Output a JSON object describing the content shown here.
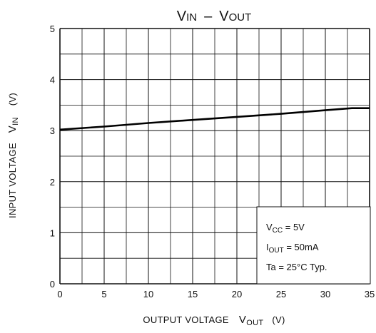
{
  "chart_data": {
    "type": "line",
    "title": {
      "v1": "V",
      "s1": "IN",
      "sep": "–",
      "v2": "V",
      "s2": "OUT"
    },
    "xlabel": {
      "main": "OUTPUT VOLTAGE",
      "sym": "V",
      "sub": "OUT",
      "unit": "(V)"
    },
    "ylabel": {
      "main": "INPUT VOLTAGE",
      "sym": "V",
      "sub": "IN",
      "unit": "(V)"
    },
    "xlim": [
      0,
      35
    ],
    "ylim": [
      0,
      5
    ],
    "xticks": [
      "0",
      "5",
      "10",
      "15",
      "20",
      "25",
      "30",
      "35"
    ],
    "yticks": [
      "0",
      "1",
      "2",
      "3",
      "4",
      "5"
    ],
    "grid": true,
    "series": [
      {
        "x": [
          0,
          5,
          10,
          15,
          20,
          25,
          30,
          33,
          35
        ],
        "y": [
          3.02,
          3.08,
          3.15,
          3.21,
          3.27,
          3.33,
          3.4,
          3.44,
          3.44
        ]
      }
    ],
    "annotations": [
      {
        "sym": "V",
        "sub": "CC",
        "rest": " = 5V"
      },
      {
        "sym": "I",
        "sub": "OUT",
        "rest": " = 50mA"
      },
      {
        "sym": "Ta = 25°C Typ.",
        "sub": "",
        "rest": ""
      }
    ]
  }
}
